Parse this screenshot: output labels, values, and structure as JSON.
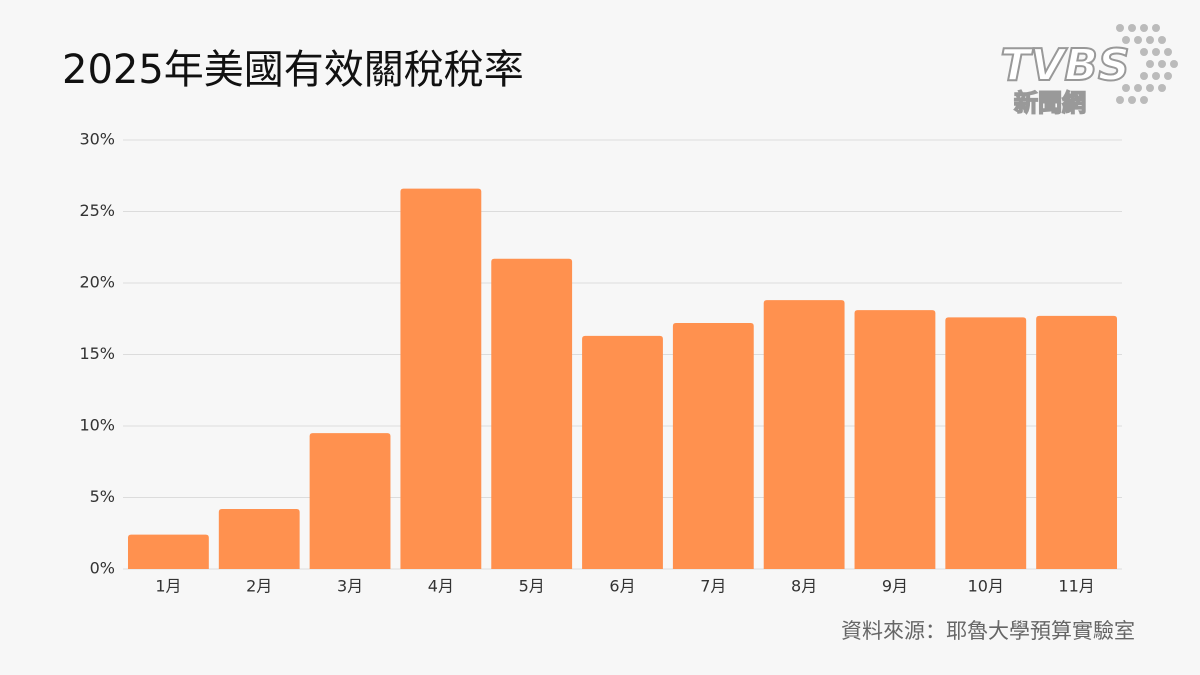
{
  "chart_data": {
    "type": "bar",
    "title": "2025年美國有效關稅稅率",
    "categories": [
      "1月",
      "2月",
      "3月",
      "4月",
      "5月",
      "6月",
      "7月",
      "8月",
      "9月",
      "10月",
      "11月"
    ],
    "values": [
      2.4,
      4.2,
      9.5,
      26.6,
      21.7,
      16.3,
      17.2,
      18.8,
      18.1,
      17.6,
      17.7
    ],
    "color": "#ff914f",
    "ylim": [
      0,
      30
    ],
    "yticks": [
      {
        "value": 0,
        "label": "0%"
      },
      {
        "value": 5,
        "label": "5%"
      },
      {
        "value": 10,
        "label": "10%"
      },
      {
        "value": 15,
        "label": "15%"
      },
      {
        "value": 20,
        "label": "20%"
      },
      {
        "value": 25,
        "label": "25%"
      },
      {
        "value": 30,
        "label": "30%"
      }
    ],
    "grid": true,
    "source": "資料來源：耶魯大學預算實驗室"
  },
  "logo": {
    "brand": "TVBS",
    "sub": "新聞網"
  }
}
